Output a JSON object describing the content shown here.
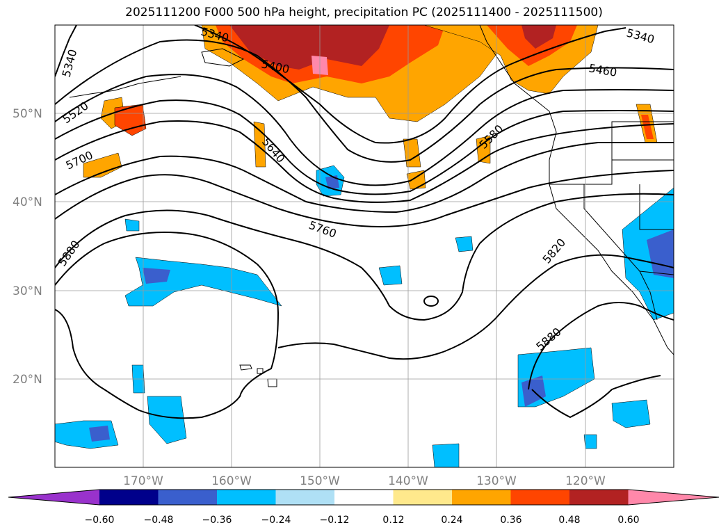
{
  "title": "2025111200 F000 500 hPa height, precipitation PC (2025111400 - 2025111500)",
  "map": {
    "lat_labels": [
      "50°N",
      "40°N",
      "30°N",
      "20°N"
    ],
    "lon_labels": [
      "170°W",
      "160°W",
      "150°W",
      "140°W",
      "130°W",
      "120°W"
    ],
    "lon_range": [
      -180,
      -110
    ],
    "lat_range": [
      10,
      60
    ],
    "grid": true,
    "contour_labels": [
      "5340",
      "5340",
      "5340",
      "5400",
      "5460",
      "5520",
      "5580",
      "5640",
      "5700",
      "5760",
      "5820",
      "5880",
      "5880"
    ]
  },
  "colorbar": {
    "ticks": [
      "−0.60",
      "−0.48",
      "−0.36",
      "−0.24",
      "−0.12",
      "0.12",
      "0.24",
      "0.36",
      "0.48",
      "0.60"
    ],
    "colors": [
      "#9932cc",
      "#00008b",
      "#3a5fcd",
      "#00bfff",
      "#afe0f5",
      "#ffffff",
      "#ffe98c",
      "#ffa500",
      "#ff4500",
      "#b22222",
      "#ff88aa"
    ],
    "extend": "both"
  }
}
